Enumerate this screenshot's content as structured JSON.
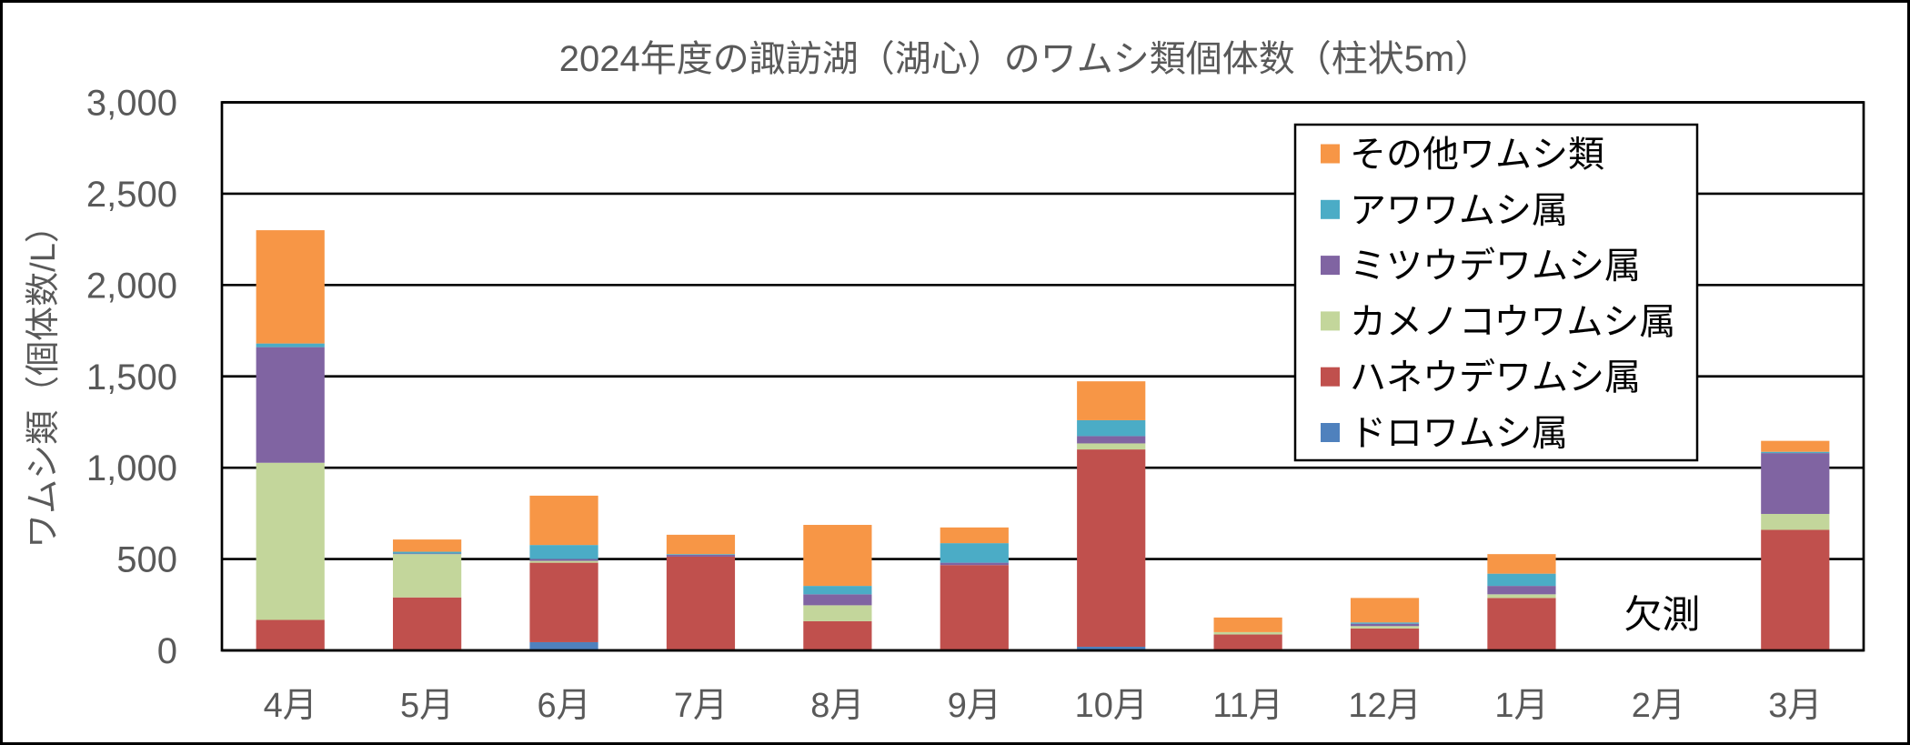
{
  "chart_data": {
    "type": "bar",
    "stacked": true,
    "title": "2024年度の諏訪湖（湖心）のワムシ類個体数（柱状5m）",
    "xlabel": "",
    "ylabel": "ワムシ類（個体数/L）",
    "ylim": [
      0,
      3000
    ],
    "yticks": [
      0,
      500,
      1000,
      1500,
      2000,
      2500,
      3000
    ],
    "ytick_labels": [
      "0",
      "500",
      "1,000",
      "1,500",
      "2,000",
      "2,500",
      "3,000"
    ],
    "grid": true,
    "legend_position": "top-right",
    "categories": [
      "4月",
      "5月",
      "6月",
      "7月",
      "8月",
      "9月",
      "10月",
      "11月",
      "12月",
      "1月",
      "2月",
      "3月"
    ],
    "series": [
      {
        "name": "ドロワムシ属",
        "color": "#4F81BD",
        "values": [
          0,
          0,
          45,
          0,
          0,
          0,
          20,
          0,
          0,
          0,
          null,
          0
        ]
      },
      {
        "name": "ハネウデワムシ属",
        "color": "#C0504D",
        "values": [
          167,
          290,
          435,
          513,
          160,
          467,
          1080,
          87,
          120,
          287,
          null,
          660
        ]
      },
      {
        "name": "カメノコウワムシ属",
        "color": "#C3D69B",
        "values": [
          860,
          237,
          10,
          0,
          87,
          0,
          33,
          13,
          13,
          20,
          null,
          87
        ]
      },
      {
        "name": "ミツウデワムシ属",
        "color": "#8064A2",
        "values": [
          633,
          3,
          10,
          10,
          60,
          13,
          40,
          0,
          13,
          46,
          null,
          333
        ]
      },
      {
        "name": "アワワムシ属",
        "color": "#4BACC6",
        "values": [
          20,
          10,
          77,
          4,
          46,
          107,
          87,
          0,
          7,
          67,
          null,
          7
        ]
      },
      {
        "name": "その他ワムシ類",
        "color": "#F79646",
        "values": [
          620,
          67,
          270,
          106,
          334,
          86,
          213,
          80,
          134,
          107,
          null,
          60
        ]
      }
    ],
    "annotations": [
      {
        "text": "欠測",
        "category": "2月"
      }
    ]
  }
}
